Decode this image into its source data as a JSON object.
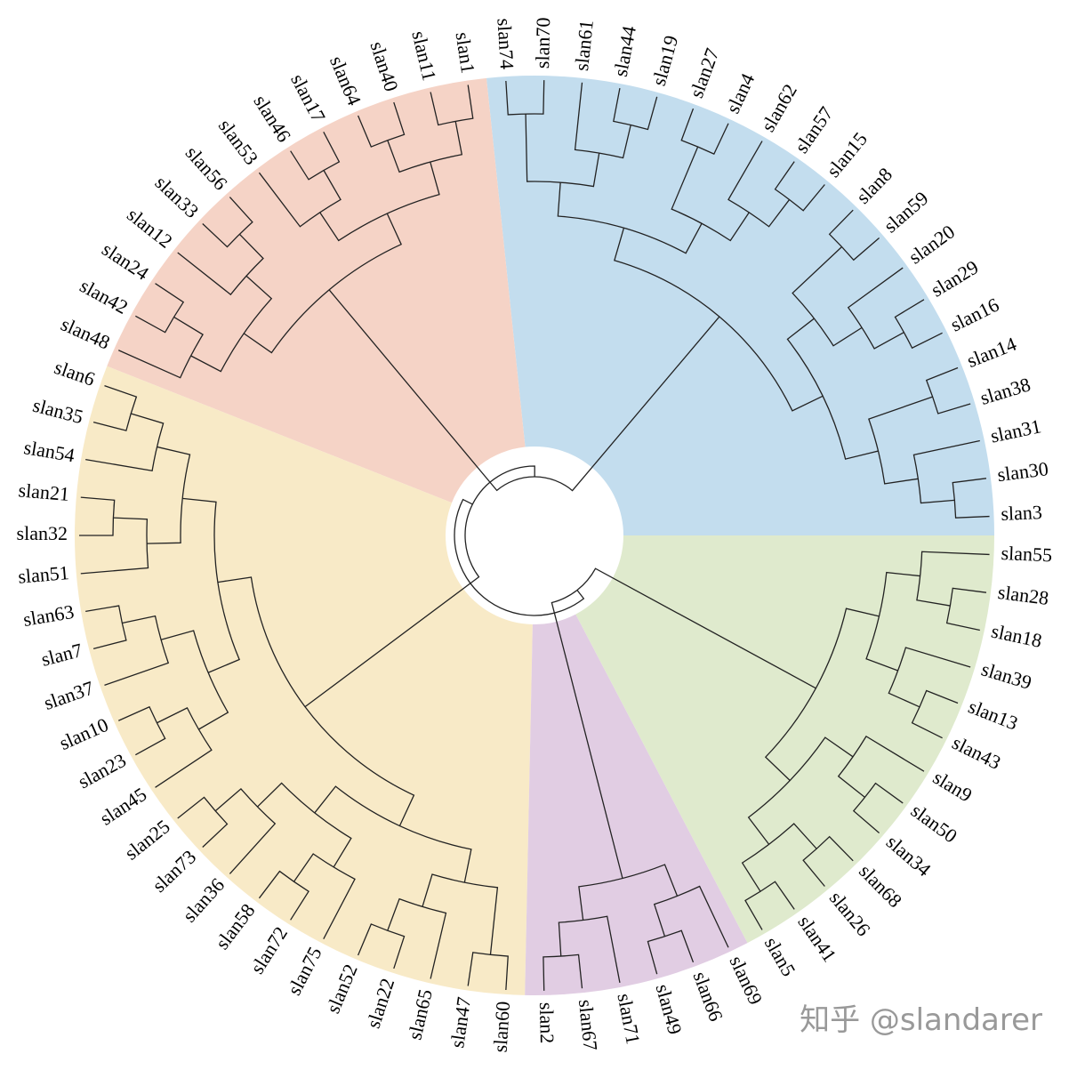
{
  "clusters": [
    {
      "color": "#c3ddee",
      "leaves": [
        "slan3",
        "slan30",
        "slan31",
        "slan38",
        "slan14",
        "slan16",
        "slan29",
        "slan20",
        "slan59",
        "slan8",
        "slan15",
        "slan57",
        "slan62",
        "slan4",
        "slan27",
        "slan19",
        "slan44",
        "slan61",
        "slan70",
        "slan74"
      ]
    },
    {
      "color": "#f5d3c6",
      "leaves": [
        "slan1",
        "slan11",
        "slan40",
        "slan64",
        "slan17",
        "slan46",
        "slan53",
        "slan56",
        "slan33",
        "slan12",
        "slan24",
        "slan42",
        "slan48"
      ]
    },
    {
      "color": "#f8eac7",
      "leaves": [
        "slan6",
        "slan35",
        "slan54",
        "slan21",
        "slan32",
        "slan51",
        "slan63",
        "slan7",
        "slan37",
        "slan10",
        "slan23",
        "slan45",
        "slan25",
        "slan73",
        "slan36",
        "slan58",
        "slan72",
        "slan75",
        "slan52",
        "slan22",
        "slan65",
        "slan47",
        "slan60"
      ]
    },
    {
      "color": "#e1cde3",
      "leaves": [
        "slan2",
        "slan67",
        "slan71",
        "slan49",
        "slan66",
        "slan69"
      ]
    },
    {
      "color": "#dfeacd",
      "leaves": [
        "slan5",
        "slan41",
        "slan26",
        "slan68",
        "slan34",
        "slan50",
        "slan9",
        "slan43",
        "slan13",
        "slan39",
        "slan18",
        "slan28",
        "slan55"
      ]
    }
  ],
  "watermark": "知乎 @slandarer"
}
